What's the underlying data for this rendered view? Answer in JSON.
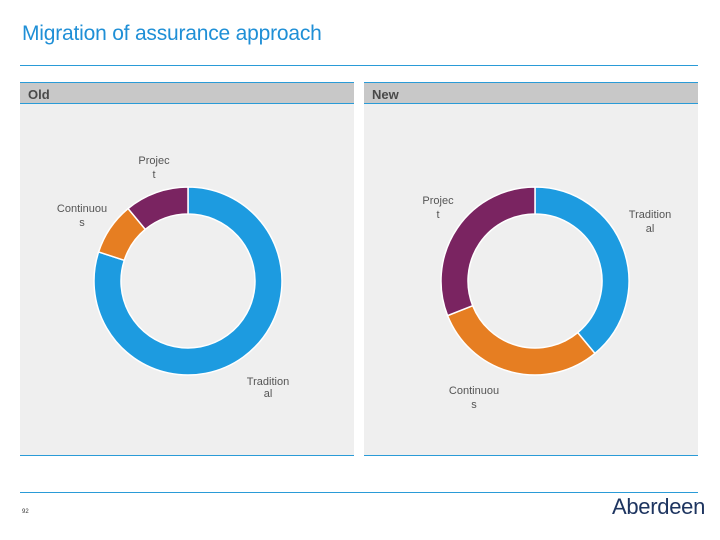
{
  "title": "Migration of assurance approach",
  "page_number": "92",
  "logo": {
    "text": "Aberdeen"
  },
  "colors": {
    "title": "#1f8fd6",
    "rule": "#2a9bd7",
    "Traditional": "#1d9be0",
    "Continuous": "#e67e22",
    "Project": "#7a2461",
    "logo": "#1e3560"
  },
  "chart_data": [
    {
      "type": "pie",
      "style": "donut",
      "title": "Old",
      "categories": [
        "Traditional",
        "Continuous",
        "Project"
      ],
      "labels_as_printed": [
        [
          "Tradition",
          "al"
        ],
        [
          "Continuou",
          "s"
        ],
        [
          "Projec",
          "t"
        ]
      ],
      "values": [
        80,
        9,
        11
      ]
    },
    {
      "type": "pie",
      "style": "donut",
      "title": "New",
      "categories": [
        "Traditional",
        "Continuous",
        "Project"
      ],
      "labels_as_printed": [
        [
          "Tradition",
          "al"
        ],
        [
          "Continuou",
          "s"
        ],
        [
          "Projec",
          "t"
        ]
      ],
      "values": [
        39,
        30,
        31
      ]
    }
  ]
}
